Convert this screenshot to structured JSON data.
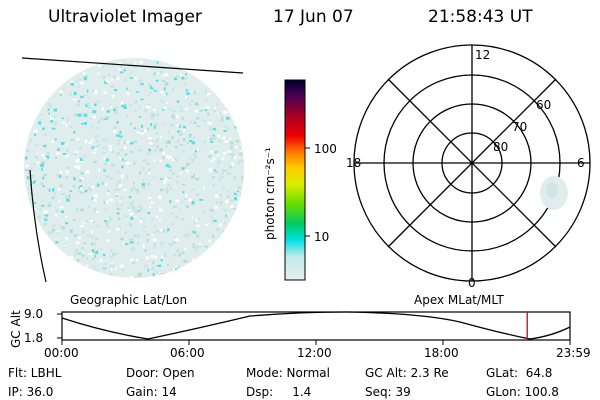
{
  "header": {
    "title": "Ultraviolet Imager",
    "date": "17 Jun 07",
    "time": "21:58:43 UT"
  },
  "colorbar": {
    "unit_label": "photon cm⁻²s⁻¹",
    "ticks": [
      "100",
      "10"
    ],
    "colors": [
      "#000033",
      "#4b0055",
      "#aa0022",
      "#ee0000",
      "#ff7700",
      "#ffcc00",
      "#ddee00",
      "#66dd00",
      "#00cc66",
      "#00e0e0",
      "#bfeaea",
      "#e6f0ee"
    ]
  },
  "polar": {
    "hour_labels": {
      "top": "12",
      "left": "18",
      "right": "6",
      "bottom": "0"
    },
    "lat_labels": [
      "60",
      "70",
      "80"
    ]
  },
  "map_labels": {
    "left": "Geographic Lat/Lon",
    "right": "Apex MLat/MLT"
  },
  "altitude_plot": {
    "ylabel": "GC Alt",
    "yticks": [
      "9.0",
      "1.8"
    ],
    "xticks": [
      "00:00",
      "06:00",
      "12:00",
      "18:00",
      "23:59"
    ],
    "marker_time_hours": 21.98
  },
  "footer": {
    "row1": [
      "Flt: LBHL",
      "Door: Open",
      "Mode: Normal",
      "GC Alt: 2.3 Re",
      "GLat:  64.8"
    ],
    "row2": [
      "IP: 36.0",
      "Gain: 14",
      "Dsp:     1.4",
      "Seq: 39",
      "GLon: 100.8"
    ]
  }
}
